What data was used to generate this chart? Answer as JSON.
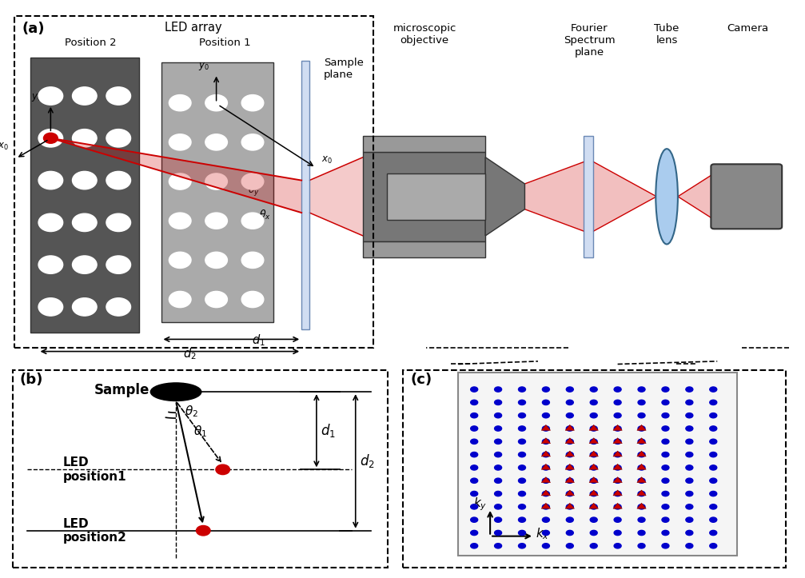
{
  "fig_width": 10.07,
  "fig_height": 7.23,
  "bg_color": "#ffffff",
  "colors": {
    "led_dark": "#555555",
    "led_light": "#aaaaaa",
    "red_led": "#cc0000",
    "beam_red": "#cc0000",
    "blue_dot": "#0000cc",
    "red_tri": "#cc0000",
    "lens_blue": "#aaccee",
    "cam_gray": "#888888",
    "sample_plane_color": "#c8d8f0",
    "obj_gray": "#777777"
  },
  "panel_a": {
    "label": "(a)",
    "led_array": "LED array",
    "pos1": "Position 1",
    "pos2": "Position 2",
    "sample_plane": "Sample\nplane",
    "microscopic": "microscopic\nobjective",
    "fourier": "Fourier\nSpectrum\nplane",
    "tube_lens": "Tube\nlens",
    "camera": "Camera"
  },
  "panel_b": {
    "label": "(b)",
    "sample": "Sample",
    "led_pos1": "LED\nposition1",
    "led_pos2": "LED\nposition2",
    "d1": "$d_1$",
    "d2": "$d_2$",
    "theta1": "$\\theta_1$",
    "theta2": "$\\theta_2$"
  },
  "panel_c": {
    "label": "(c)",
    "kx": "$k_x$",
    "ky": "$k_y$"
  }
}
